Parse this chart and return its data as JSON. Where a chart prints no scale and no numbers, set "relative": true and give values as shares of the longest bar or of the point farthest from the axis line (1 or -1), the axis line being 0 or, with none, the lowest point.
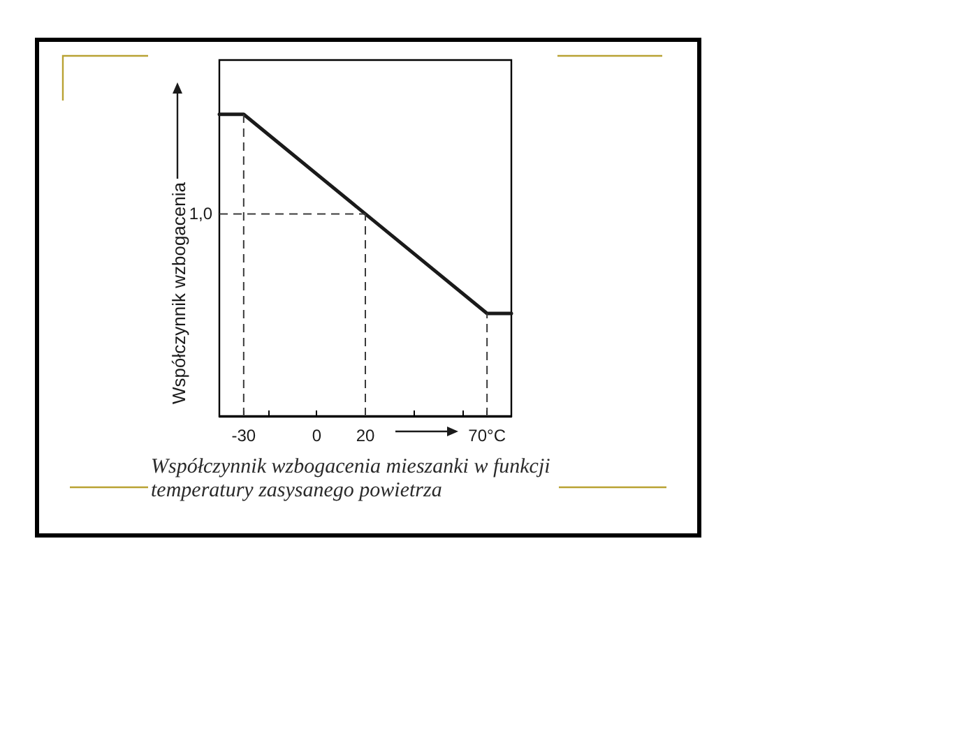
{
  "chart_data": {
    "type": "line",
    "ylabel": "Współczynnik wzbogacenia",
    "relative": true,
    "marker": "none",
    "xlim": [
      -40,
      80
    ],
    "xticks": [
      -30,
      {
        "value": -20,
        "label": null
      },
      0,
      20,
      {
        "value": 40,
        "label": null
      },
      {
        "value": 60,
        "label": null
      },
      {
        "value": 70,
        "label": "70°C"
      }
    ],
    "series": [
      {
        "color": "#1a1a1a",
        "x": [
          -40,
          -30,
          70,
          80
        ],
        "values": [
          1,
          1,
          0.34,
          0.34
        ],
        "line_style": "solid"
      },
      {
        "color": "#3a3a3a",
        "x": [
          -30,
          -30
        ],
        "values": [
          0,
          1
        ],
        "line_style": "dashed"
      },
      {
        "color": "#3a3a3a",
        "x": [
          20,
          20
        ],
        "values": [
          0,
          0.67
        ],
        "line_style": "dashed"
      },
      {
        "color": "#3a3a3a",
        "x": [
          70,
          70
        ],
        "values": [
          0,
          0.34
        ],
        "line_style": "dashed"
      },
      {
        "color": "#3a3a3a",
        "x": [
          -40,
          20
        ],
        "values": [
          0.67,
          0.67
        ],
        "line_style": "dashed"
      }
    ],
    "annotations": [
      {
        "text": "1,0",
        "x": -40,
        "y": 0.67
      },
      "Współczynnik wzbogacenia mieszanki w funkcji temperatury zasysanego powietrza"
    ]
  }
}
